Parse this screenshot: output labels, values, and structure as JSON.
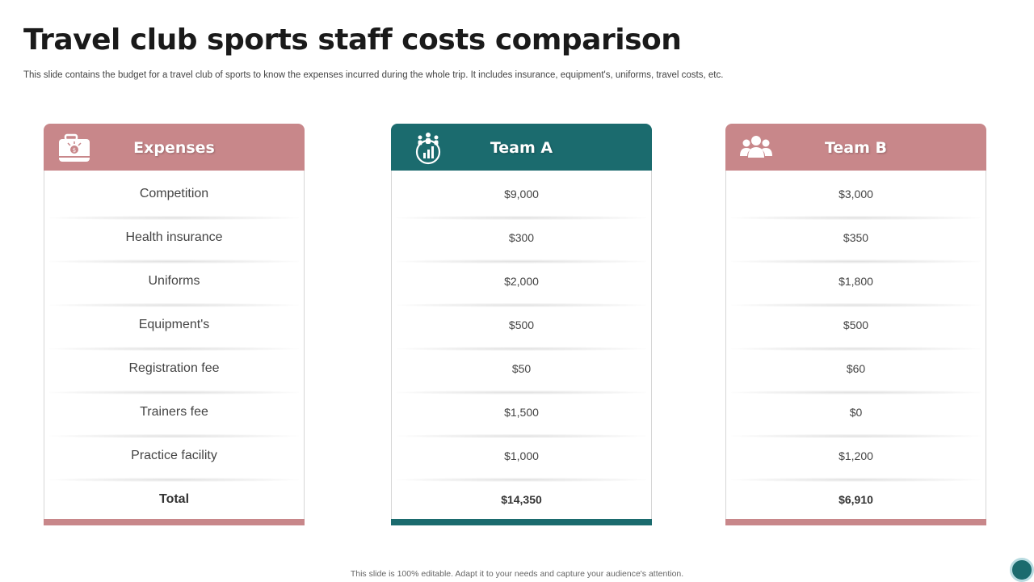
{
  "slide": {
    "title": "Travel club sports staff costs comparison",
    "subtitle": "This slide contains the budget for a travel  club of sports to know the expenses incurred during the whole trip. It includes insurance, equipment's, uniforms, travel costs, etc.",
    "footer": "This slide is 100% editable.  Adapt it to your needs and capture your audience's attention."
  },
  "colors": {
    "pink_accent": "#c8878a",
    "teal_accent": "#1b6b6e"
  },
  "columns": [
    {
      "title": "Expenses",
      "icon": "briefcase-money-icon",
      "color": "#c8878a",
      "rows": [
        "Competition",
        "Health insurance",
        "Uniforms",
        "Equipment's",
        "Registration fee",
        "Trainers fee",
        "Practice facility"
      ],
      "total": "Total"
    },
    {
      "title": "Team A",
      "icon": "team-chart-icon",
      "color": "#1b6b6e",
      "rows": [
        "$9,000",
        "$300",
        "$2,000",
        "$500",
        "$50",
        "$1,500",
        "$1,000"
      ],
      "total": "$14,350"
    },
    {
      "title": "Team B",
      "icon": "group-people-icon",
      "color": "#c8878a",
      "rows": [
        "$3,000",
        "$350",
        "$1,800",
        "$500",
        "$60",
        "$0",
        "$1,200"
      ],
      "total": "$6,910"
    }
  ]
}
